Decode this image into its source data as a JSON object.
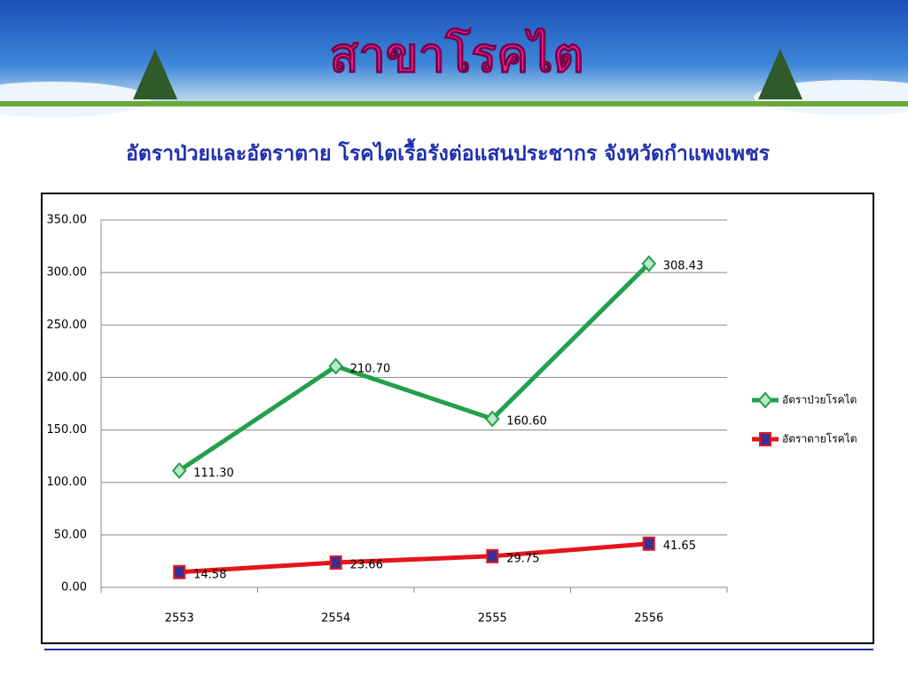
{
  "header": {
    "title": "สาขาโรคไต"
  },
  "subtitle": "อัตราป่วยและอัตราตาย โรคไตเรื้อรังต่อแสนประชากร จังหวัดกำแพงเพชร",
  "chart_data": {
    "type": "line",
    "categories": [
      "2553",
      "2554",
      "2555",
      "2556"
    ],
    "series": [
      {
        "name": "อัตราป่วยโรคไต",
        "color": "#22a04b",
        "marker": "diamond",
        "marker_fill": "#b9e8c8",
        "values": [
          111.3,
          210.7,
          160.6,
          308.43
        ],
        "value_labels": [
          "111.30",
          "210.70",
          "160.60",
          "308.43"
        ]
      },
      {
        "name": "อัตราตายโรคไต",
        "color": "#e3161b",
        "marker": "square",
        "marker_fill": "#3b2f95",
        "values": [
          14.58,
          23.66,
          29.75,
          41.65
        ],
        "value_labels": [
          "14.58",
          "23.66",
          "29.75",
          "41.65"
        ]
      }
    ],
    "ylim": [
      0,
      350
    ],
    "yticks": [
      {
        "value": 0,
        "label": "0.00"
      },
      {
        "value": 50,
        "label": "50.00"
      },
      {
        "value": 100,
        "label": "100.00"
      },
      {
        "value": 150,
        "label": "150.00"
      },
      {
        "value": 200,
        "label": "200.00"
      },
      {
        "value": 250,
        "label": "250.00"
      },
      {
        "value": 300,
        "label": "300.00"
      },
      {
        "value": 350,
        "label": "350.00"
      }
    ],
    "grid": true,
    "legend": "right"
  }
}
